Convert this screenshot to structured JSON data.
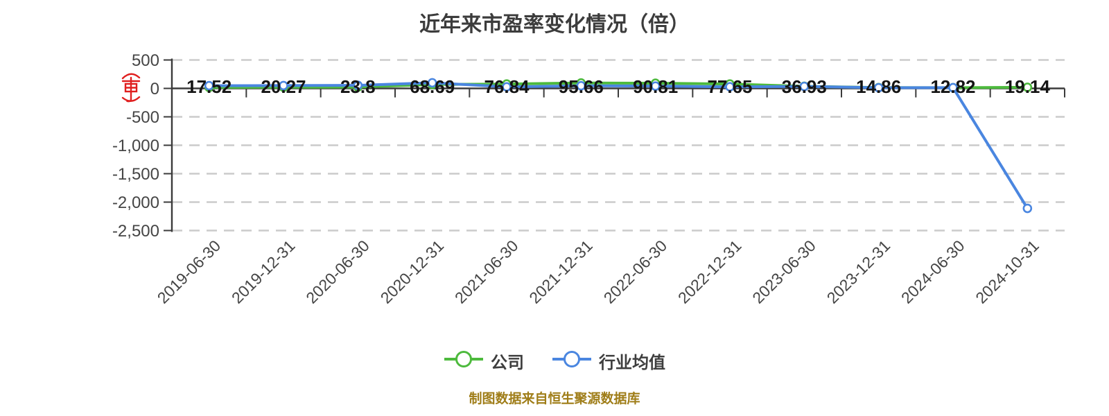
{
  "chart_data": {
    "type": "line",
    "title": "近年来市盈率变化情况（倍）",
    "categories": [
      "2019-06-30",
      "2019-12-31",
      "2020-06-30",
      "2020-12-31",
      "2021-06-30",
      "2021-12-31",
      "2022-06-30",
      "2022-12-31",
      "2023-06-30",
      "2023-12-31",
      "2024-06-30",
      "2024-10-31"
    ],
    "series": [
      {
        "name": "公司",
        "color": "#4dba3d",
        "show_value_labels": true,
        "values": [
          17.52,
          20.27,
          23.8,
          68.69,
          76.84,
          95.66,
          90.81,
          77.65,
          36.93,
          14.86,
          12.82,
          19.14
        ]
      },
      {
        "name": "行业均值",
        "color": "#4a86e0",
        "show_value_labels": false,
        "values": [
          48,
          50,
          54,
          99,
          27,
          46,
          41,
          28,
          35,
          12,
          13,
          -2110
        ]
      }
    ],
    "value_labels": [
      "17.52",
      "20.27",
      "23.8",
      "68.69",
      "76.84",
      "95.66",
      "90.81",
      "77.65",
      "36.93",
      "14.86",
      "12.82",
      "19.14"
    ],
    "y_axis": {
      "tick_values": [
        500,
        0,
        -500,
        -1000,
        -1500,
        -2000,
        -2500
      ],
      "tick_labels": [
        "500",
        "0",
        "-500",
        "-1,000",
        "-1,500",
        "-2,000",
        "-2,500"
      ],
      "range": [
        -2500,
        500
      ]
    },
    "x_axis": {
      "label_rotation_deg": 45
    },
    "grid": {
      "horizontal_dashed": true,
      "zero_line_solid": true
    },
    "legend": {
      "position": "bottom",
      "items": [
        {
          "label": "公司",
          "color": "#4dba3d"
        },
        {
          "label": "行业均值",
          "color": "#4a86e0"
        }
      ]
    },
    "marker_style": "white-filled-circle"
  },
  "footer": {
    "text": "制图数据来自恒生聚源数据库"
  },
  "watermark": {
    "name": "red-seal-logo",
    "color": "#e01f1f"
  },
  "colors": {
    "company_green": "#4dba3d",
    "industry_blue": "#4a86e0",
    "gridline": "#cbcbcb",
    "axis": "#3b3b3b",
    "title_text": "#3c3c3c",
    "axis_text": "#454545",
    "value_label_text": "#141414",
    "footer_text": "#9f7d18"
  }
}
